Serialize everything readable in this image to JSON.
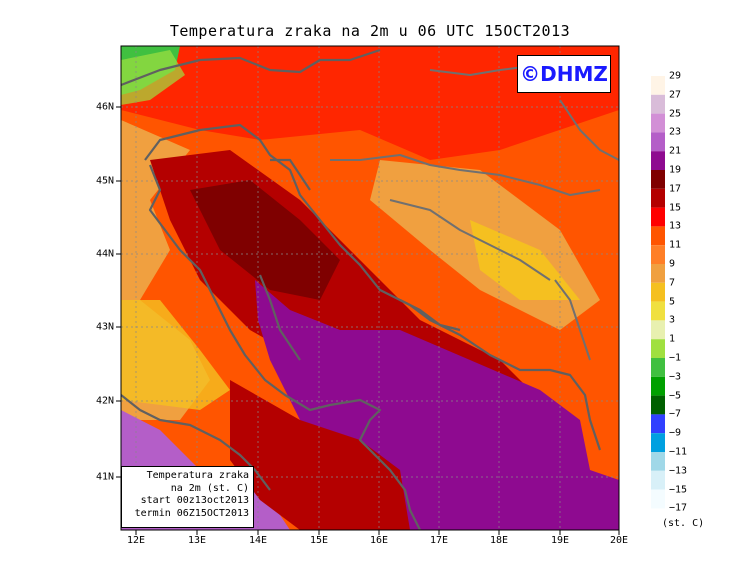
{
  "title": "Temperatura zraka na 2m u 06 UTC 15OCT2013",
  "logo": "©DHMZ",
  "infobox": {
    "line1": "Temperatura zraka",
    "line2": "na 2m (st. C)",
    "line3": "start 00z13oct2013",
    "line4": "termin 06Z15OCT2013"
  },
  "latitude_labels": [
    "46N",
    "45N",
    "44N",
    "43N",
    "42N",
    "41N"
  ],
  "longitude_labels": [
    "12E",
    "13E",
    "14E",
    "15E",
    "16E",
    "17E",
    "18E",
    "19E",
    "20E"
  ],
  "legend": {
    "units": "(st. C)",
    "labels": [
      "29",
      "27",
      "25",
      "23",
      "21",
      "19",
      "17",
      "15",
      "13",
      "11",
      "9",
      "7",
      "5",
      "3",
      "1",
      "−1",
      "−3",
      "−5",
      "−7",
      "−9",
      "−11",
      "−13",
      "−15",
      "−17"
    ],
    "colors": [
      "#fff4e6",
      "#d9bcd9",
      "#d28fd6",
      "#b45ec8",
      "#8e0a90",
      "#7f0000",
      "#b40000",
      "#ff0000",
      "#ff5500",
      "#ff7f27",
      "#f0a040",
      "#f5c020",
      "#f0e040",
      "#e8f0b0",
      "#a0e040",
      "#40c040",
      "#00a000",
      "#006000",
      "#3040ff",
      "#00a0e0",
      "#a0d8e8",
      "#d8f0f8",
      "#f4fcff"
    ]
  },
  "colors": {
    "sea_south": "#8b0a8f",
    "sea_west_margin": "#b45ec8",
    "coast_lines": "#606060",
    "grid": "#888888"
  }
}
